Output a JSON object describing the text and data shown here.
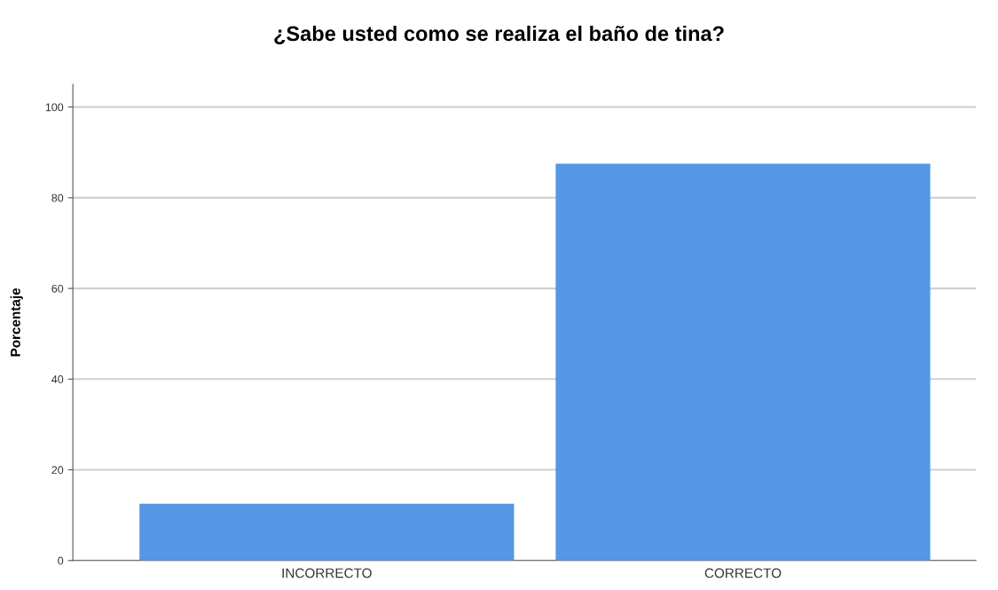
{
  "chart_data": {
    "type": "bar",
    "title": "¿Sabe usted como se realiza el baño de tina?",
    "ylabel": "Porcentaje",
    "categories": [
      "INCORRECTO",
      "CORRECTO"
    ],
    "values": [
      12.5,
      87.5
    ],
    "color": "#5597e4",
    "ylim": [
      0,
      105
    ],
    "yticks": [
      0,
      20,
      40,
      60,
      80,
      100
    ],
    "grid": "y"
  }
}
